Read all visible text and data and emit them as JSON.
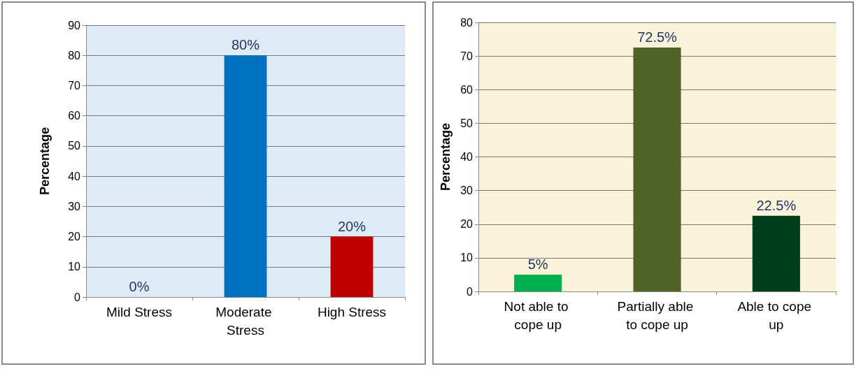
{
  "chart_data": [
    {
      "type": "bar",
      "ylabel": "Percentage",
      "categories": [
        "Mild Stress",
        "Moderate Stress",
        "High Stress"
      ],
      "values": [
        0,
        80,
        20
      ],
      "colors": [
        "#0070c0",
        "#0070c0",
        "#c00000"
      ],
      "value_labels": [
        "0%",
        "80%",
        "20%"
      ],
      "ylim": [
        0,
        90
      ],
      "yticks": [
        0,
        10,
        20,
        30,
        40,
        50,
        60,
        70,
        80,
        90
      ],
      "grid": "y"
    },
    {
      "type": "bar",
      "ylabel": "Percentage",
      "categories": [
        "Not able to cope up",
        "Partially able to cope up",
        "Able to cope up"
      ],
      "values": [
        5,
        72.5,
        22.5
      ],
      "colors": [
        "#00b050",
        "#4f6228",
        "#003d1a"
      ],
      "value_labels": [
        "5%",
        "72.5%",
        "22.5%"
      ],
      "ylim": [
        0,
        80
      ],
      "yticks": [
        0,
        10,
        20,
        30,
        40,
        50,
        60,
        70,
        80
      ],
      "grid": "y"
    }
  ]
}
